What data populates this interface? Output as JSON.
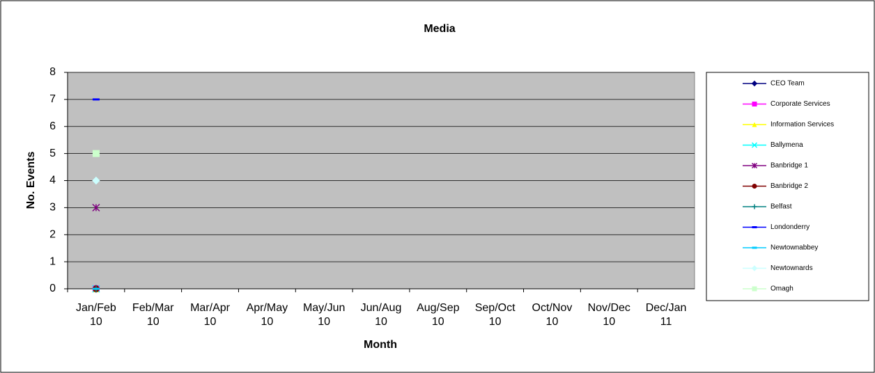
{
  "chart_data": {
    "type": "line",
    "title": "Media",
    "x_label": "Month",
    "y_label": "No. Events",
    "categories": [
      "Jan/Feb 10",
      "Feb/Mar 10",
      "Mar/Apr 10",
      "Apr/May 10",
      "May/Jun 10",
      "Jun/Aug 10",
      "Aug/Sep 10",
      "Sep/Oct 10",
      "Oct/Nov 10",
      "Nov/Dec 10",
      "Dec/Jan 11"
    ],
    "ylim": [
      0,
      8
    ],
    "yticks": [
      0,
      1,
      2,
      3,
      4,
      5,
      6,
      7,
      8
    ],
    "grid": true,
    "legend": "right",
    "series": [
      {
        "name": "CEO Team",
        "color": "#000080",
        "marker": "diamond",
        "values": [
          0,
          null,
          null,
          null,
          null,
          null,
          null,
          null,
          null,
          null,
          null
        ]
      },
      {
        "name": "Corporate Services",
        "color": "#ff00ff",
        "marker": "square",
        "values": [
          0,
          null,
          null,
          null,
          null,
          null,
          null,
          null,
          null,
          null,
          null
        ]
      },
      {
        "name": "Information Services",
        "color": "#ffff00",
        "marker": "triangle",
        "values": [
          0,
          null,
          null,
          null,
          null,
          null,
          null,
          null,
          null,
          null,
          null
        ]
      },
      {
        "name": "Ballymena",
        "color": "#00ffff",
        "marker": "x",
        "values": [
          0,
          null,
          null,
          null,
          null,
          null,
          null,
          null,
          null,
          null,
          null
        ]
      },
      {
        "name": "Banbridge 1",
        "color": "#800080",
        "marker": "star",
        "values": [
          3,
          null,
          null,
          null,
          null,
          null,
          null,
          null,
          null,
          null,
          null
        ]
      },
      {
        "name": "Banbridge 2",
        "color": "#800000",
        "marker": "circle",
        "values": [
          0,
          null,
          null,
          null,
          null,
          null,
          null,
          null,
          null,
          null,
          null
        ]
      },
      {
        "name": "Belfast",
        "color": "#008080",
        "marker": "plus",
        "values": [
          0,
          null,
          null,
          null,
          null,
          null,
          null,
          null,
          null,
          null,
          null
        ]
      },
      {
        "name": "Londonderry",
        "color": "#0000ff",
        "marker": "dash",
        "values": [
          7,
          null,
          null,
          null,
          null,
          null,
          null,
          null,
          null,
          null,
          null
        ]
      },
      {
        "name": "Newtownabbey",
        "color": "#00ccff",
        "marker": "dash",
        "values": [
          0,
          null,
          null,
          null,
          null,
          null,
          null,
          null,
          null,
          null,
          null
        ]
      },
      {
        "name": "Newtownards",
        "color": "#ccffff",
        "marker": "diamond",
        "values": [
          4,
          null,
          null,
          null,
          null,
          null,
          null,
          null,
          null,
          null,
          null
        ]
      },
      {
        "name": "Omagh",
        "color": "#ccffcc",
        "marker": "square",
        "values": [
          5,
          null,
          null,
          null,
          null,
          null,
          null,
          null,
          null,
          null,
          null
        ]
      }
    ]
  }
}
